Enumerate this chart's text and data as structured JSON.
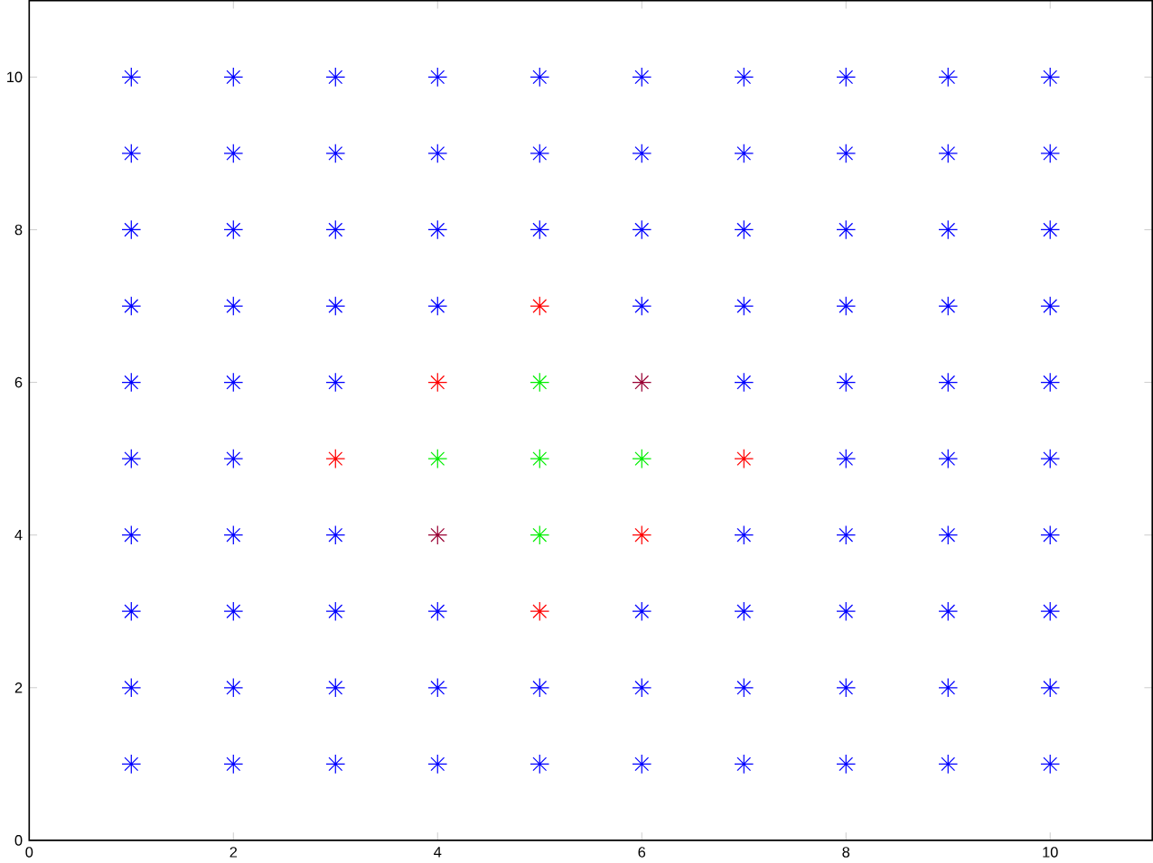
{
  "chart_data": {
    "type": "scatter",
    "marker": "cross",
    "xlim": [
      0,
      11
    ],
    "ylim": [
      0,
      11
    ],
    "xticks": [
      0,
      2,
      4,
      6,
      8,
      10
    ],
    "yticks": [
      0,
      2,
      4,
      6,
      8,
      10
    ],
    "series": [
      {
        "color": "#0000ff",
        "x": [
          1,
          1,
          1,
          1,
          1,
          1,
          1,
          1,
          1,
          1,
          2,
          2,
          2,
          2,
          2,
          2,
          2,
          2,
          2,
          2,
          3,
          3,
          3,
          3,
          3,
          3,
          3,
          3,
          3,
          4,
          4,
          4,
          4,
          4,
          4,
          4,
          5,
          5,
          5,
          5,
          5,
          6,
          6,
          6,
          6,
          6,
          6,
          6,
          7,
          7,
          7,
          7,
          7,
          7,
          7,
          7,
          7,
          8,
          8,
          8,
          8,
          8,
          8,
          8,
          8,
          8,
          8,
          9,
          9,
          9,
          9,
          9,
          9,
          9,
          9,
          9,
          9,
          10,
          10,
          10,
          10,
          10,
          10,
          10,
          10,
          10,
          10
        ],
        "values": [
          1,
          2,
          3,
          4,
          5,
          6,
          7,
          8,
          9,
          10,
          1,
          2,
          3,
          4,
          5,
          6,
          7,
          8,
          9,
          10,
          1,
          2,
          3,
          4,
          6,
          7,
          8,
          9,
          10,
          1,
          2,
          3,
          7,
          8,
          9,
          10,
          1,
          2,
          8,
          9,
          10,
          1,
          2,
          3,
          7,
          8,
          9,
          10,
          1,
          2,
          3,
          4,
          6,
          7,
          8,
          9,
          10,
          1,
          2,
          3,
          4,
          5,
          6,
          7,
          8,
          9,
          10,
          1,
          2,
          3,
          4,
          5,
          6,
          7,
          8,
          9,
          10,
          1,
          2,
          3,
          4,
          5,
          6,
          7,
          8,
          9,
          10
        ]
      },
      {
        "x": [
          5,
          4,
          6,
          3,
          7,
          4,
          6,
          5
        ],
        "values": [
          7,
          6,
          6,
          5,
          5,
          4,
          4,
          3
        ],
        "colors": [
          "#ff0000",
          "#ff0000",
          "#990033",
          "#ff0000",
          "#ff0000",
          "#990033",
          "#ff0000",
          "#ff0000"
        ]
      },
      {
        "color": "#00ee00",
        "x": [
          5,
          4,
          5,
          6,
          5
        ],
        "values": [
          6,
          5,
          5,
          5,
          4
        ]
      }
    ]
  }
}
